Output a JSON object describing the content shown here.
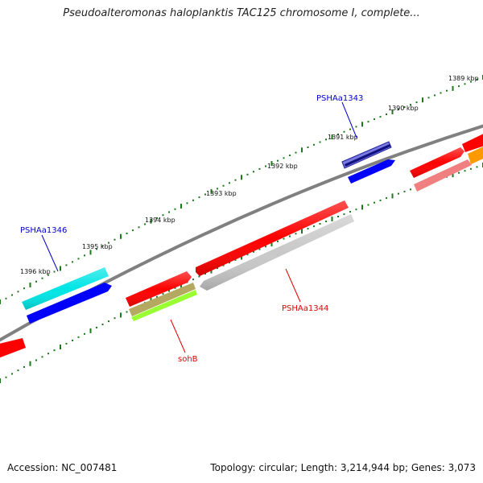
{
  "title": "Pseudoalteromonas haloplanktis TAC125 chromosome I, complete...",
  "footer": {
    "accession": "Accession: NC_007481",
    "summary": "Topology: circular; Length: 3,214,944 bp; Genes: 3,073"
  },
  "ruler": {
    "labels": [
      "1389 kbp",
      "1390 kbp",
      "1391 kbp",
      "1392 kbp",
      "1393 kbp",
      "1394 kbp",
      "1395 kbp",
      "1396 kbp"
    ]
  },
  "gene_labels": {
    "PSHAa1343": "PSHAa1343",
    "PSHAa1344": "PSHAa1344",
    "PSHAa1346": "PSHAa1346",
    "sohB": "sohB"
  },
  "colors": {
    "backbone": "#808080",
    "tick": "#1a7a1a",
    "red": "#ff0000",
    "blue": "#0000ff",
    "cyan": "#00e5e5",
    "gray": "#c8c8c8",
    "olive": "#b5a860",
    "lime": "#99ff33",
    "salmon": "#f08080",
    "orange": "#ff9900",
    "label_blue": "#0000cc",
    "label_red": "#e00000"
  }
}
